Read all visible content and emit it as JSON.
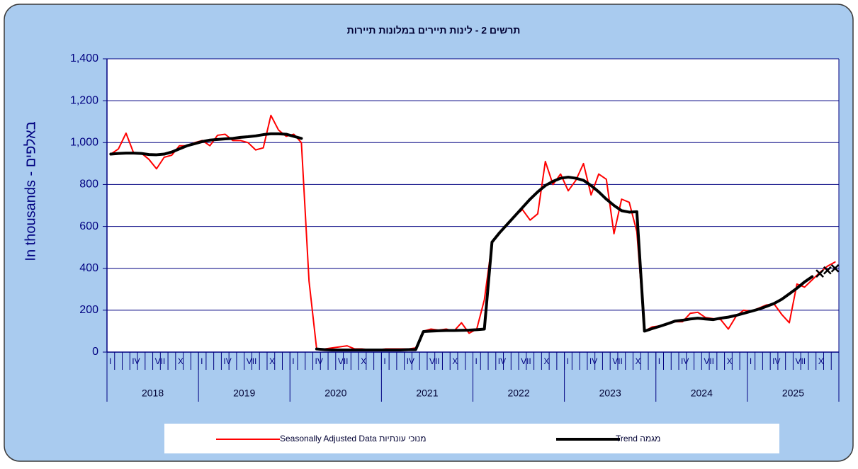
{
  "chart_data": {
    "type": "line",
    "title": "תרשים 2 - לינות תיירים במלונות תיירות",
    "y_label": "In thousands - באלפים",
    "categories": [
      "I",
      null,
      null,
      "IV",
      null,
      null,
      "VII",
      null,
      null,
      "X",
      null,
      null,
      "I",
      null,
      null,
      "IV",
      null,
      null,
      "VII",
      null,
      null,
      "X",
      null,
      null,
      "I",
      null,
      null,
      "IV",
      null,
      null,
      "VII",
      null,
      null,
      "X",
      null,
      null,
      "I",
      null,
      null,
      "IV",
      null,
      null,
      "VII",
      null,
      null,
      "X",
      null,
      null,
      "I",
      null,
      null,
      "IV",
      null,
      null,
      "VII",
      null,
      null,
      "X",
      null,
      null,
      "I",
      null,
      null,
      "IV",
      null,
      null,
      "VII",
      null,
      null,
      "X",
      null,
      null,
      "I",
      null,
      null,
      "IV",
      null,
      null,
      "VII",
      null,
      null,
      "X",
      null,
      null,
      "I",
      null,
      null,
      "IV",
      null,
      null,
      "VII",
      null,
      null,
      "X",
      null,
      null
    ],
    "years": [
      "2018",
      "2019",
      "2020",
      "2021",
      "2022",
      "2023",
      "2024",
      "2025"
    ],
    "ylim": [
      0,
      1400
    ],
    "yticks": [
      0,
      200,
      400,
      600,
      800,
      {
        "value": 1000,
        "label": "1,000"
      },
      {
        "value": 1200,
        "label": "1,200"
      },
      {
        "value": 1400,
        "label": "1,400"
      }
    ],
    "grid": true,
    "series": [
      {
        "name": "Seasonally Adjusted  Data  מנוכי עונתיות",
        "color": "#ff0000",
        "values": [
          945,
          970,
          1045,
          950,
          950,
          920,
          875,
          930,
          940,
          985,
          985,
          1000,
          1010,
          985,
          1035,
          1040,
          1010,
          1010,
          1000,
          965,
          975,
          1130,
          1060,
          1030,
          1040,
          1000,
          340,
          15,
          15,
          20,
          25,
          30,
          15,
          15,
          12,
          12,
          15,
          15,
          15,
          15,
          20,
          100,
          110,
          105,
          110,
          100,
          140,
          90,
          110,
          250,
          520,
          570,
          610,
          650,
          680,
          630,
          660,
          910,
          800,
          850,
          770,
          820,
          900,
          750,
          850,
          825,
          565,
          730,
          715,
          575,
          100,
          120,
          125,
          135,
          145,
          145,
          185,
          190,
          165,
          160,
          155,
          110,
          170,
          200,
          195,
          210,
          225,
          230,
          180,
          140,
          325,
          310,
          345,
          380,
          410,
          430
        ]
      },
      {
        "name": "Trend מגמה",
        "color": "#000000",
        "values": [
          945,
          948,
          950,
          950,
          948,
          943,
          942,
          945,
          955,
          970,
          985,
          995,
          1005,
          1012,
          1015,
          1018,
          1020,
          1025,
          1028,
          1032,
          1038,
          1042,
          1042,
          1040,
          1030,
          1020,
          null,
          15,
          12,
          10,
          10,
          10,
          10,
          10,
          10,
          10,
          10,
          10,
          10,
          12,
          12,
          98,
          100,
          102,
          103,
          103,
          104,
          105,
          107,
          110,
          525,
          570,
          610,
          650,
          690,
          730,
          765,
          795,
          815,
          830,
          835,
          830,
          820,
          795,
          765,
          730,
          700,
          675,
          668,
          670,
          100,
          112,
          123,
          135,
          148,
          152,
          158,
          162,
          158,
          155,
          162,
          167,
          175,
          185,
          195,
          205,
          218,
          232,
          252,
          278,
          305,
          335,
          360,
          null,
          null,
          null
        ]
      },
      {
        "color": "#000000",
        "marker": "x",
        "values": [
          null,
          null,
          null,
          null,
          null,
          null,
          null,
          null,
          null,
          null,
          null,
          null,
          null,
          null,
          null,
          null,
          null,
          null,
          null,
          null,
          null,
          null,
          null,
          null,
          null,
          null,
          null,
          null,
          null,
          null,
          null,
          null,
          null,
          null,
          null,
          null,
          null,
          null,
          null,
          null,
          null,
          null,
          null,
          null,
          null,
          null,
          null,
          null,
          null,
          null,
          null,
          null,
          null,
          null,
          null,
          null,
          null,
          null,
          null,
          null,
          null,
          null,
          null,
          null,
          null,
          null,
          null,
          null,
          null,
          null,
          null,
          null,
          null,
          null,
          null,
          null,
          null,
          null,
          null,
          null,
          null,
          null,
          null,
          null,
          null,
          null,
          null,
          null,
          null,
          null,
          null,
          null,
          null,
          375,
          390,
          400
        ]
      }
    ]
  }
}
